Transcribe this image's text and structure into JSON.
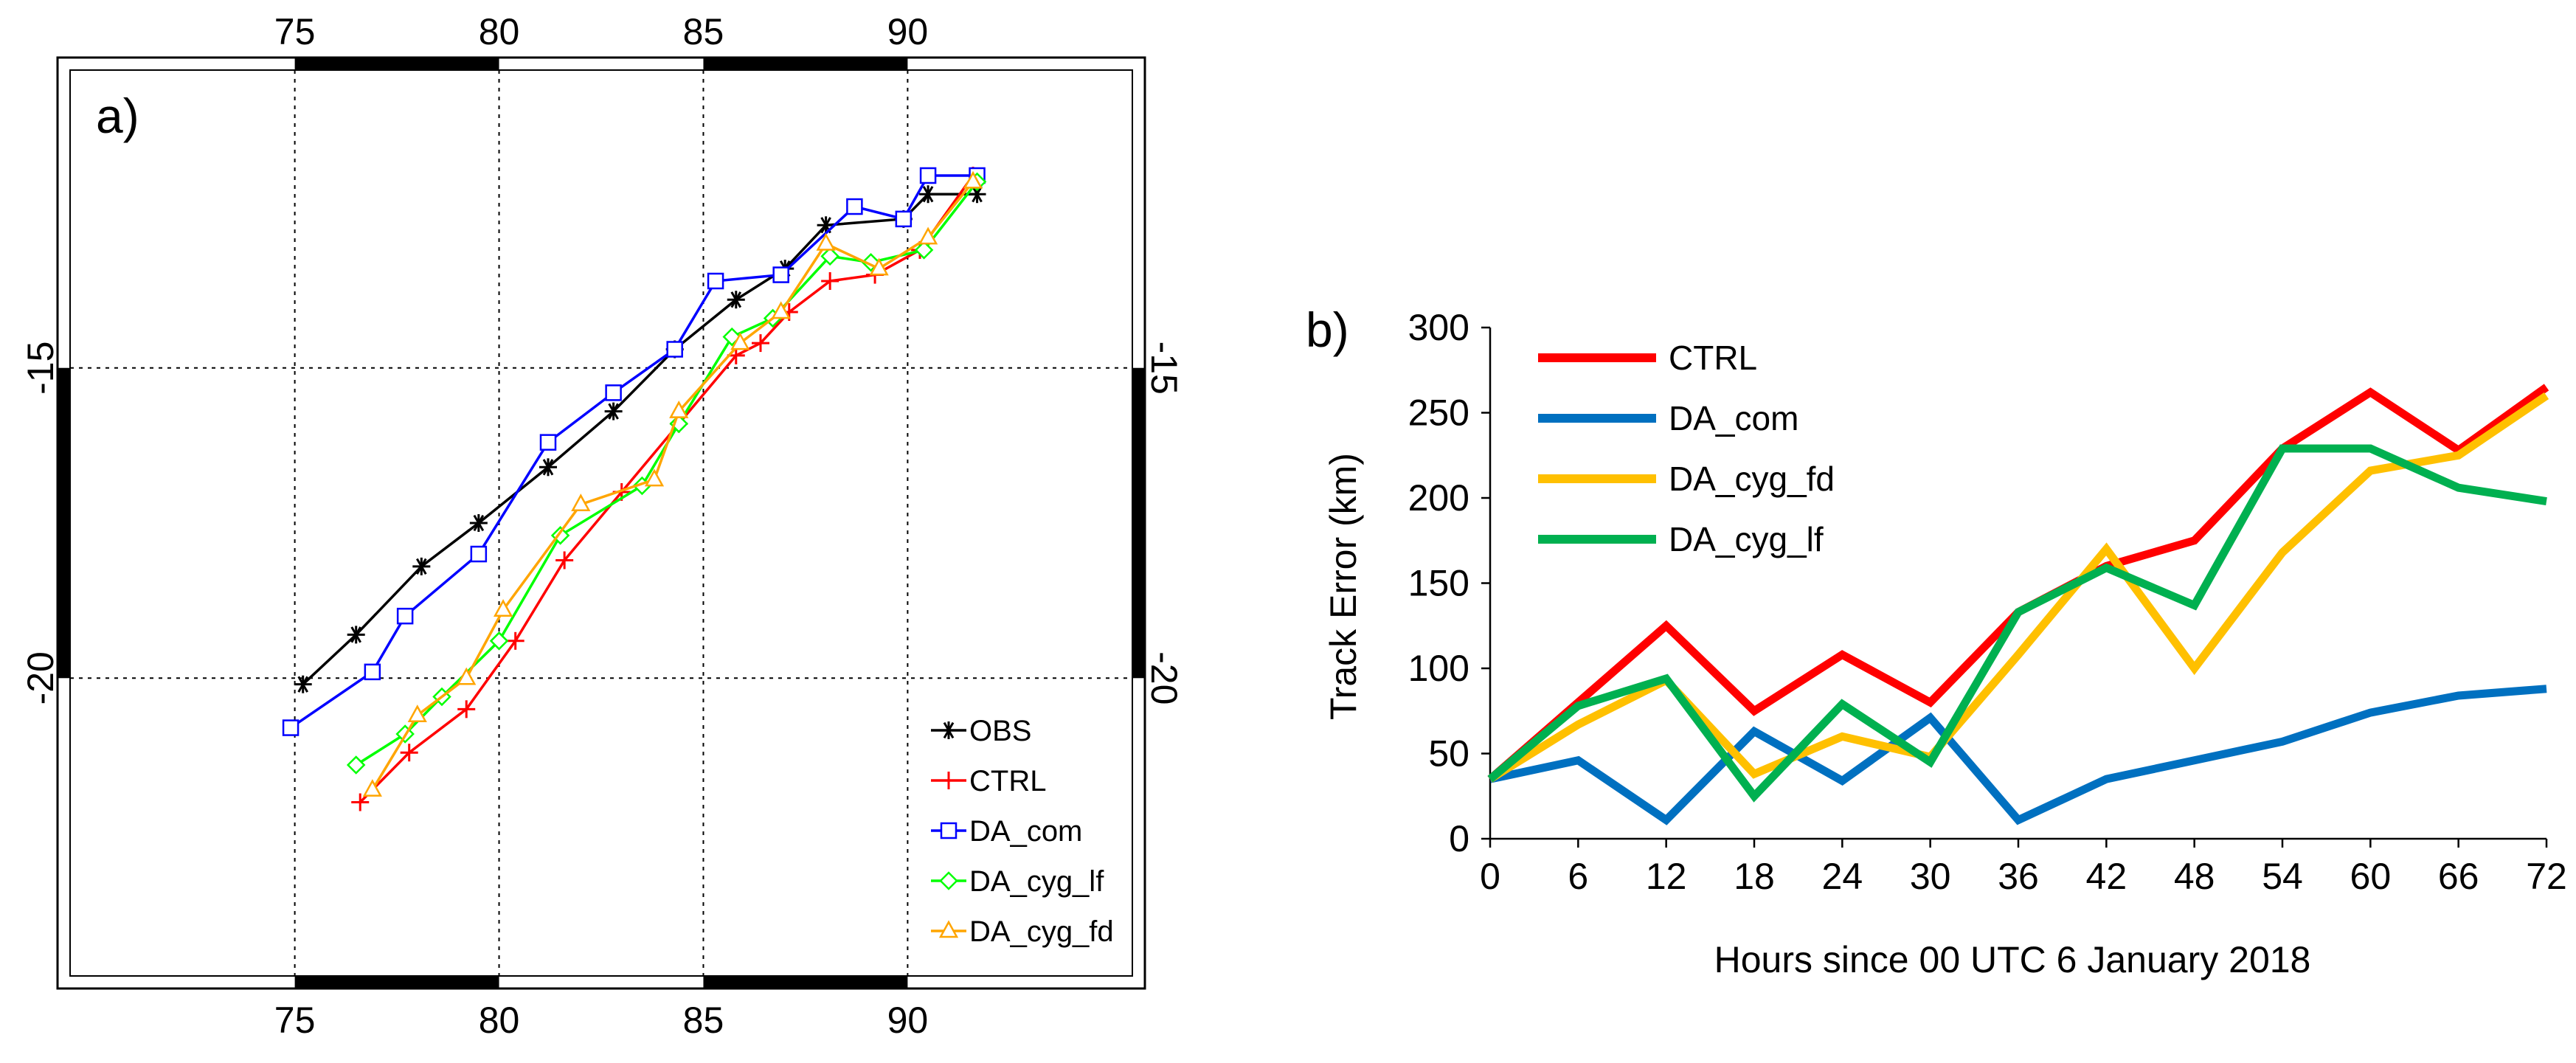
{
  "chart_data": [
    {
      "type": "line",
      "panel_label": "a)",
      "xlim": [
        69.5,
        95.5
      ],
      "ylim": [
        -24.8,
        -10.2
      ],
      "x_ticks": [
        75,
        80,
        85,
        90
      ],
      "x_tick_labels": [
        "75",
        "80",
        "85",
        "90"
      ],
      "y_ticks": [
        -15,
        -20
      ],
      "y_tick_labels": [
        "-15",
        "-20"
      ],
      "grid": true,
      "legend_position": "bottom-right",
      "series": [
        {
          "name": "OBS",
          "color": "#000000",
          "marker": "asterisk",
          "x": [
            75.2,
            76.5,
            78.1,
            79.5,
            81.2,
            82.8,
            84.3,
            85.8,
            87.0,
            88.0,
            89.9,
            90.5,
            91.7
          ],
          "y": [
            -20.1,
            -19.3,
            -18.2,
            -17.5,
            -16.6,
            -15.7,
            -14.7,
            -13.9,
            -13.4,
            -12.7,
            -12.6,
            -12.2,
            -12.2
          ]
        },
        {
          "name": "CTRL",
          "color": "#ff0000",
          "marker": "plus",
          "x": [
            76.6,
            77.8,
            79.2,
            80.4,
            81.6,
            83.0,
            84.4,
            85.8,
            86.4,
            87.1,
            88.1,
            89.2,
            90.3,
            91.6
          ],
          "y": [
            -22.0,
            -21.2,
            -20.5,
            -19.4,
            -18.1,
            -17.0,
            -15.9,
            -14.8,
            -14.6,
            -14.1,
            -13.6,
            -13.5,
            -13.1,
            -11.9
          ]
        },
        {
          "name": "DA_com",
          "color": "#0000ff",
          "marker": "square",
          "x": [
            74.9,
            76.9,
            77.7,
            79.5,
            81.2,
            82.8,
            84.3,
            85.3,
            86.9,
            88.7,
            89.9,
            90.5,
            91.7
          ],
          "y": [
            -20.8,
            -19.9,
            -19.0,
            -18.0,
            -16.2,
            -15.4,
            -14.7,
            -13.6,
            -13.5,
            -12.4,
            -12.6,
            -11.9,
            -11.9
          ]
        },
        {
          "name": "DA_cyg_lf",
          "color": "#00ff00",
          "marker": "diamond",
          "x": [
            76.5,
            77.7,
            78.6,
            80.0,
            81.5,
            83.5,
            84.4,
            85.7,
            86.7,
            88.1,
            89.1,
            90.4,
            91.7
          ],
          "y": [
            -21.4,
            -20.9,
            -20.3,
            -19.4,
            -17.7,
            -16.9,
            -15.9,
            -14.5,
            -14.2,
            -13.2,
            -13.3,
            -13.1,
            -12.0
          ]
        },
        {
          "name": "DA_cyg_fd",
          "color": "#ffa500",
          "marker": "triangle",
          "x": [
            76.9,
            78.0,
            79.2,
            80.1,
            82.0,
            83.8,
            84.4,
            85.9,
            86.9,
            88.0,
            89.3,
            90.5,
            91.6
          ],
          "y": [
            -21.8,
            -20.6,
            -20.0,
            -18.9,
            -17.2,
            -16.8,
            -15.7,
            -14.6,
            -14.1,
            -13.0,
            -13.4,
            -12.9,
            -12.0
          ]
        }
      ],
      "legend_order": [
        "OBS",
        "CTRL",
        "DA_com",
        "DA_cyg_lf",
        "DA_cyg_fd"
      ]
    },
    {
      "type": "line",
      "panel_label": "b)",
      "xlabel": "Hours since 00 UTC 6 January 2018",
      "ylabel": "Track Error (km)",
      "x": [
        0,
        6,
        12,
        18,
        24,
        30,
        36,
        42,
        48,
        54,
        60,
        66,
        72
      ],
      "categories": [
        "0",
        "6",
        "12",
        "18",
        "24",
        "30",
        "36",
        "42",
        "48",
        "54",
        "60",
        "66",
        "72"
      ],
      "ylim": [
        0,
        300
      ],
      "y_ticks": [
        0,
        50,
        100,
        150,
        200,
        250,
        300
      ],
      "y_tick_labels": [
        "0",
        "50",
        "100",
        "150",
        "200",
        "250",
        "300"
      ],
      "grid": false,
      "legend_position": "top-left",
      "series": [
        {
          "name": "CTRL",
          "color": "#ff0000",
          "values": [
            35,
            80,
            125,
            75,
            108,
            80,
            133,
            160,
            175,
            229,
            262,
            228,
            265
          ]
        },
        {
          "name": "DA_com",
          "color": "#0070c0",
          "values": [
            35,
            46,
            11,
            63,
            34,
            71,
            11,
            35,
            46,
            57,
            74,
            84,
            88
          ]
        },
        {
          "name": "DA_cyg_fd",
          "color": "#ffc000",
          "values": [
            35,
            67,
            93,
            38,
            60,
            48,
            108,
            170,
            100,
            168,
            216,
            225,
            260
          ]
        },
        {
          "name": "DA_cyg_lf",
          "color": "#00b050",
          "values": [
            35,
            78,
            94,
            25,
            79,
            45,
            133,
            159,
            137,
            229,
            229,
            206,
            198
          ]
        }
      ],
      "legend_order": [
        "CTRL",
        "DA_com",
        "DA_cyg_fd",
        "DA_cyg_lf"
      ]
    }
  ]
}
